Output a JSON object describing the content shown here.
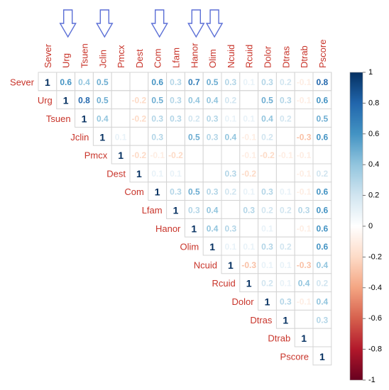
{
  "chart_data": {
    "type": "heatmap",
    "title": "",
    "xlabel": "",
    "ylabel": "",
    "variables": [
      "Sever",
      "Urg",
      "Tsuen",
      "Jclin",
      "Pmcx",
      "Dest",
      "Com",
      "Lfam",
      "Hanor",
      "Olim",
      "Ncuid",
      "Rcuid",
      "Dolor",
      "Dtras",
      "Dtrab",
      "Pscore"
    ],
    "matrix_shape": "upper-triangular",
    "value_range": [
      -1,
      1
    ],
    "colorbar_ticks": [
      "1",
      "0.8",
      "0.6",
      "0.4",
      "0.2",
      "0",
      "-0.2",
      "-0.4",
      "-0.6",
      "-0.8",
      "-1"
    ],
    "color_low": "#67001f",
    "color_mid": "#ffffff",
    "color_high": "#053061",
    "highlighted_columns": [
      "Urg",
      "Jclin",
      "Com",
      "Hanor",
      "Olim"
    ],
    "arrow_color": "#5b6fd6",
    "values": [
      [
        1,
        0.6,
        0.4,
        0.5,
        null,
        null,
        0.6,
        0.3,
        0.7,
        0.5,
        0.3,
        0.1,
        0.3,
        0.2,
        -0.1,
        0.8
      ],
      [
        null,
        1,
        0.8,
        0.5,
        null,
        -0.2,
        0.5,
        0.3,
        0.4,
        0.4,
        0.2,
        null,
        0.5,
        0.3,
        -0.1,
        0.6
      ],
      [
        null,
        null,
        1,
        0.4,
        null,
        -0.2,
        0.3,
        0.3,
        0.2,
        0.3,
        0.1,
        0.1,
        0.4,
        0.2,
        null,
        0.5
      ],
      [
        null,
        null,
        null,
        1,
        0.1,
        null,
        0.3,
        null,
        0.5,
        0.3,
        0.4,
        -0.1,
        0.2,
        null,
        -0.3,
        0.6
      ],
      [
        null,
        null,
        null,
        null,
        1,
        -0.2,
        -0.1,
        -0.2,
        null,
        null,
        null,
        -0.1,
        -0.2,
        -0.1,
        -0.1,
        null
      ],
      [
        null,
        null,
        null,
        null,
        null,
        1,
        0.1,
        0.1,
        null,
        null,
        0.3,
        -0.2,
        null,
        null,
        -0.1,
        0.2
      ],
      [
        null,
        null,
        null,
        null,
        null,
        null,
        1,
        0.3,
        0.5,
        0.3,
        0.2,
        0.1,
        0.3,
        0.1,
        -0.1,
        0.6
      ],
      [
        null,
        null,
        null,
        null,
        null,
        null,
        null,
        1,
        0.3,
        0.4,
        null,
        0.3,
        0.2,
        0.2,
        0.3,
        0.6
      ],
      [
        null,
        null,
        null,
        null,
        null,
        null,
        null,
        null,
        1,
        0.4,
        0.3,
        null,
        0.1,
        null,
        -0.1,
        0.6
      ],
      [
        null,
        null,
        null,
        null,
        null,
        null,
        null,
        null,
        null,
        1,
        0.1,
        0.1,
        0.3,
        0.2,
        null,
        0.6
      ],
      [
        null,
        null,
        null,
        null,
        null,
        null,
        null,
        null,
        null,
        null,
        1,
        -0.3,
        0.1,
        0.1,
        -0.3,
        0.4
      ],
      [
        null,
        null,
        null,
        null,
        null,
        null,
        null,
        null,
        null,
        null,
        null,
        1,
        0.2,
        0.1,
        0.4,
        0.2
      ],
      [
        null,
        null,
        null,
        null,
        null,
        null,
        null,
        null,
        null,
        null,
        null,
        null,
        1,
        0.3,
        -0.1,
        0.4
      ],
      [
        null,
        null,
        null,
        null,
        null,
        null,
        null,
        null,
        null,
        null,
        null,
        null,
        null,
        1,
        null,
        0.3
      ],
      [
        null,
        null,
        null,
        null,
        null,
        null,
        null,
        null,
        null,
        null,
        null,
        null,
        null,
        null,
        1,
        null
      ],
      [
        null,
        null,
        null,
        null,
        null,
        null,
        null,
        null,
        null,
        null,
        null,
        null,
        null,
        null,
        null,
        1
      ]
    ]
  }
}
